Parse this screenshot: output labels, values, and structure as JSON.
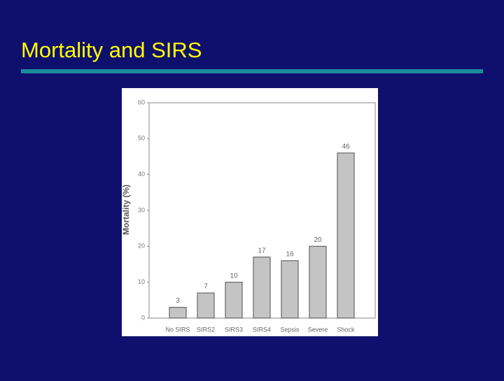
{
  "slide_title": "Mortality and SIRS",
  "chart_data": {
    "type": "bar",
    "y_label": "Mortality (%)",
    "categories": [
      "No SIRS",
      "SIRS2",
      "SIRS3",
      "SIRS4",
      "Sepsis",
      "Severe",
      "Shock"
    ],
    "values": [
      3,
      7,
      10,
      17,
      16,
      20,
      46
    ],
    "color": "#c4c4c4",
    "ylim": [
      0,
      60
    ],
    "yticks": [
      0,
      10,
      20,
      30,
      40,
      50,
      60
    ]
  }
}
